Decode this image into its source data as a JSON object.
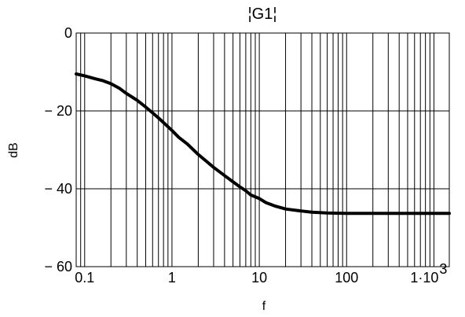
{
  "chart_data": {
    "type": "line",
    "title": "¦G1¦",
    "xlabel": "f",
    "ylabel": "dB",
    "x_scale": "log",
    "xlim": [
      0.08,
      1500
    ],
    "ylim": [
      -60,
      0
    ],
    "y_ticks": [
      {
        "value": 0,
        "label": "0"
      },
      {
        "value": -20,
        "label": "− 20"
      },
      {
        "value": -40,
        "label": "− 40"
      },
      {
        "value": -60,
        "label": "− 60"
      }
    ],
    "x_ticks": [
      {
        "value": 0.1,
        "label": "0.1"
      },
      {
        "value": 1,
        "label": "1"
      },
      {
        "value": 10,
        "label": "10"
      },
      {
        "value": 100,
        "label": "100"
      },
      {
        "value": 1000,
        "label": "1·10",
        "sup": "3"
      }
    ],
    "grid": true,
    "series": [
      {
        "color": "#000000",
        "x": [
          0.08,
          0.1,
          0.13,
          0.16,
          0.2,
          0.25,
          0.3,
          0.4,
          0.5,
          0.6,
          0.7,
          0.8,
          1.0,
          1.2,
          1.5,
          2.0,
          2.5,
          3.0,
          4.0,
          5.0,
          6.0,
          7.0,
          8.0,
          10,
          12,
          15,
          20,
          30,
          40,
          60,
          100,
          200,
          500,
          1500
        ],
        "y": [
          -10.5,
          -11,
          -11.7,
          -12.2,
          -13,
          -14.2,
          -15.5,
          -17.3,
          -19,
          -20.5,
          -21.8,
          -23,
          -25,
          -26.8,
          -28.5,
          -31.2,
          -33,
          -34.5,
          -36.6,
          -38.2,
          -39.5,
          -40.5,
          -41.6,
          -42.5,
          -43.6,
          -44.4,
          -45.2,
          -45.7,
          -46,
          -46.2,
          -46.3,
          -46.3,
          -46.3,
          -46.3
        ]
      }
    ]
  }
}
